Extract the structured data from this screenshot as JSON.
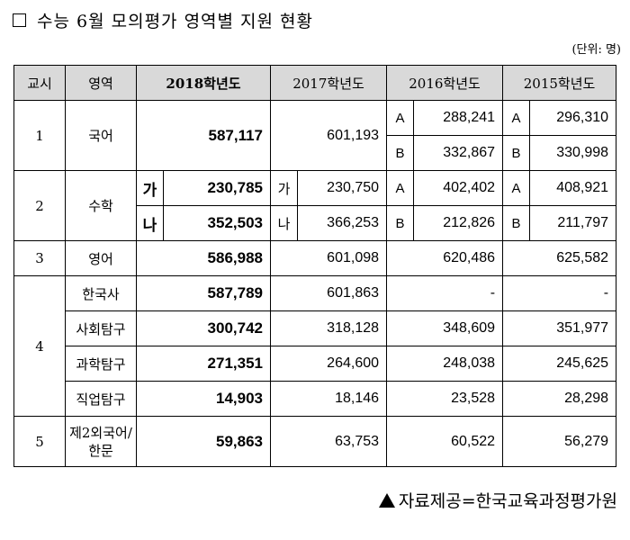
{
  "title": "수능 6월 모의평가 영역별 지원 현황",
  "unit": "(단위: 명)",
  "headers": {
    "period": "교시",
    "area": "영역",
    "y2018": "2018학년도",
    "y2017": "2017학년도",
    "y2016": "2016학년도",
    "y2015": "2015학년도"
  },
  "rows": {
    "korean": {
      "period": "1",
      "area": "국어",
      "y2018": "587,117",
      "y2017": "601,193",
      "y2016": [
        {
          "type": "A",
          "value": "288,241"
        },
        {
          "type": "B",
          "value": "332,867"
        }
      ],
      "y2015": [
        {
          "type": "A",
          "value": "296,310"
        },
        {
          "type": "B",
          "value": "330,998"
        }
      ]
    },
    "math": {
      "period": "2",
      "area": "수학",
      "y2018": [
        {
          "type": "가",
          "value": "230,785"
        },
        {
          "type": "나",
          "value": "352,503"
        }
      ],
      "y2017": [
        {
          "type": "가",
          "value": "230,750"
        },
        {
          "type": "나",
          "value": "366,253"
        }
      ],
      "y2016": [
        {
          "type": "A",
          "value": "402,402"
        },
        {
          "type": "B",
          "value": "212,826"
        }
      ],
      "y2015": [
        {
          "type": "A",
          "value": "408,921"
        },
        {
          "type": "B",
          "value": "211,797"
        }
      ]
    },
    "english": {
      "period": "3",
      "area": "영어",
      "y2018": "586,988",
      "y2017": "601,098",
      "y2016": "620,486",
      "y2015": "625,582"
    },
    "period4": {
      "period": "4",
      "items": [
        {
          "area": "한국사",
          "y2018": "587,789",
          "y2017": "601,863",
          "y2016": "-",
          "y2015": "-"
        },
        {
          "area": "사회탐구",
          "y2018": "300,742",
          "y2017": "318,128",
          "y2016": "348,609",
          "y2015": "351,977"
        },
        {
          "area": "과학탐구",
          "y2018": "271,351",
          "y2017": "264,600",
          "y2016": "248,038",
          "y2015": "245,625"
        },
        {
          "area": "직업탐구",
          "y2018": "14,903",
          "y2017": "18,146",
          "y2016": "23,528",
          "y2015": "28,298"
        }
      ]
    },
    "foreign": {
      "period": "5",
      "area_line1": "제2외국어/",
      "area_line2": "한문",
      "y2018": "59,863",
      "y2017": "63,753",
      "y2016": "60,522",
      "y2015": "56,279"
    }
  },
  "source": "자료제공=한국교육과정평가원"
}
